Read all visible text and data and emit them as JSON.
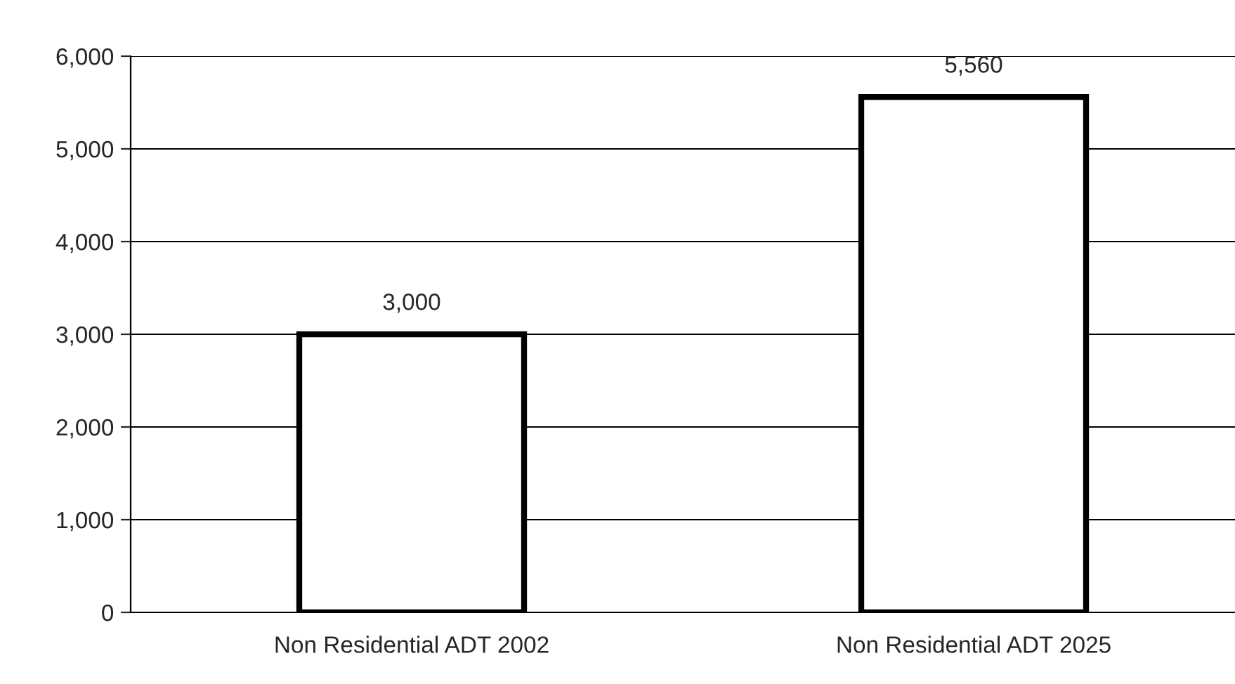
{
  "chart_data": {
    "type": "bar",
    "categories": [
      "Non Residential ADT 2002",
      "Non Residential ADT 2025"
    ],
    "values": [
      3000,
      5560
    ],
    "value_labels": [
      "3,000",
      "5,560"
    ],
    "color": "#ffffff",
    "ylim": [
      0,
      6000
    ],
    "yticks": [
      {
        "value": 0,
        "label": "0"
      },
      {
        "value": 1000,
        "label": "1,000"
      },
      {
        "value": 2000,
        "label": "2,000"
      },
      {
        "value": 3000,
        "label": "3,000"
      },
      {
        "value": 4000,
        "label": "4,000"
      },
      {
        "value": 5000,
        "label": "5,000"
      },
      {
        "value": 6000,
        "label": "6,000"
      }
    ],
    "grid": "y"
  }
}
